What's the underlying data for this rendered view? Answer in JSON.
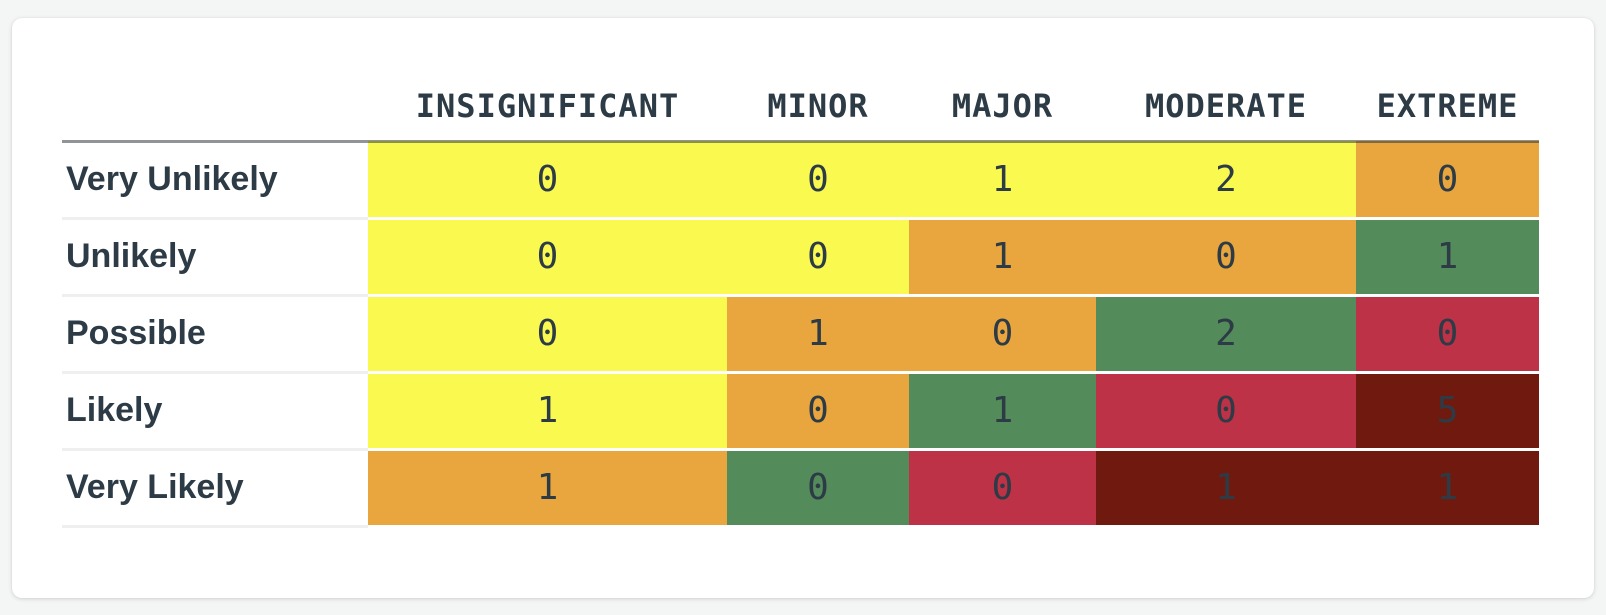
{
  "page": {
    "background_color": "#f4f5f5",
    "card_background_color": "#ffffff",
    "text_color": "#2c3b45"
  },
  "palette": {
    "yellow": "#f9f950",
    "orange": "#e9a63e",
    "green": "#548b5a",
    "crimson": "#bd3246",
    "dark_red": "#701a0f",
    "header_rule": "rgba(33,41,47,0.5)",
    "label_separator": "#efefef"
  },
  "chart_data": {
    "type": "heatmap",
    "title": "",
    "xlabel": "",
    "ylabel": "",
    "legend_position": "none",
    "grid": false,
    "columns": [
      "INSIGNIFICANT",
      "MINOR",
      "MAJOR",
      "MODERATE",
      "EXTREME"
    ],
    "row_labels": [
      "Very Unlikely",
      "Unlikely",
      "Possible",
      "Likely",
      "Very Likely"
    ],
    "values": [
      [
        0,
        0,
        1,
        2,
        0
      ],
      [
        0,
        0,
        1,
        0,
        1
      ],
      [
        0,
        1,
        0,
        2,
        0
      ],
      [
        1,
        0,
        1,
        0,
        5
      ],
      [
        1,
        0,
        0,
        1,
        1
      ]
    ],
    "rows": [
      {
        "label": "Very Unlikely",
        "cells": [
          {
            "value": "0",
            "color": "#f9f950"
          },
          {
            "value": "0",
            "color": "#f9f950"
          },
          {
            "value": "1",
            "color": "#f9f950"
          },
          {
            "value": "2",
            "color": "#f9f950"
          },
          {
            "value": "0",
            "color": "#e9a63e"
          }
        ]
      },
      {
        "label": "Unlikely",
        "cells": [
          {
            "value": "0",
            "color": "#f9f950"
          },
          {
            "value": "0",
            "color": "#f9f950"
          },
          {
            "value": "1",
            "color": "#e9a63e"
          },
          {
            "value": "0",
            "color": "#e9a63e"
          },
          {
            "value": "1",
            "color": "#548b5a"
          }
        ]
      },
      {
        "label": "Possible",
        "cells": [
          {
            "value": "0",
            "color": "#f9f950"
          },
          {
            "value": "1",
            "color": "#e9a63e"
          },
          {
            "value": "0",
            "color": "#e9a63e"
          },
          {
            "value": "2",
            "color": "#548b5a"
          },
          {
            "value": "0",
            "color": "#bd3246"
          }
        ]
      },
      {
        "label": "Likely",
        "cells": [
          {
            "value": "1",
            "color": "#f9f950"
          },
          {
            "value": "0",
            "color": "#e9a63e"
          },
          {
            "value": "1",
            "color": "#548b5a"
          },
          {
            "value": "0",
            "color": "#bd3246"
          },
          {
            "value": "5",
            "color": "#701a0f"
          }
        ]
      },
      {
        "label": "Very Likely",
        "cells": [
          {
            "value": "1",
            "color": "#e9a63e"
          },
          {
            "value": "0",
            "color": "#548b5a"
          },
          {
            "value": "0",
            "color": "#bd3246"
          },
          {
            "value": "1",
            "color": "#701a0f"
          },
          {
            "value": "1",
            "color": "#701a0f"
          }
        ]
      }
    ]
  }
}
